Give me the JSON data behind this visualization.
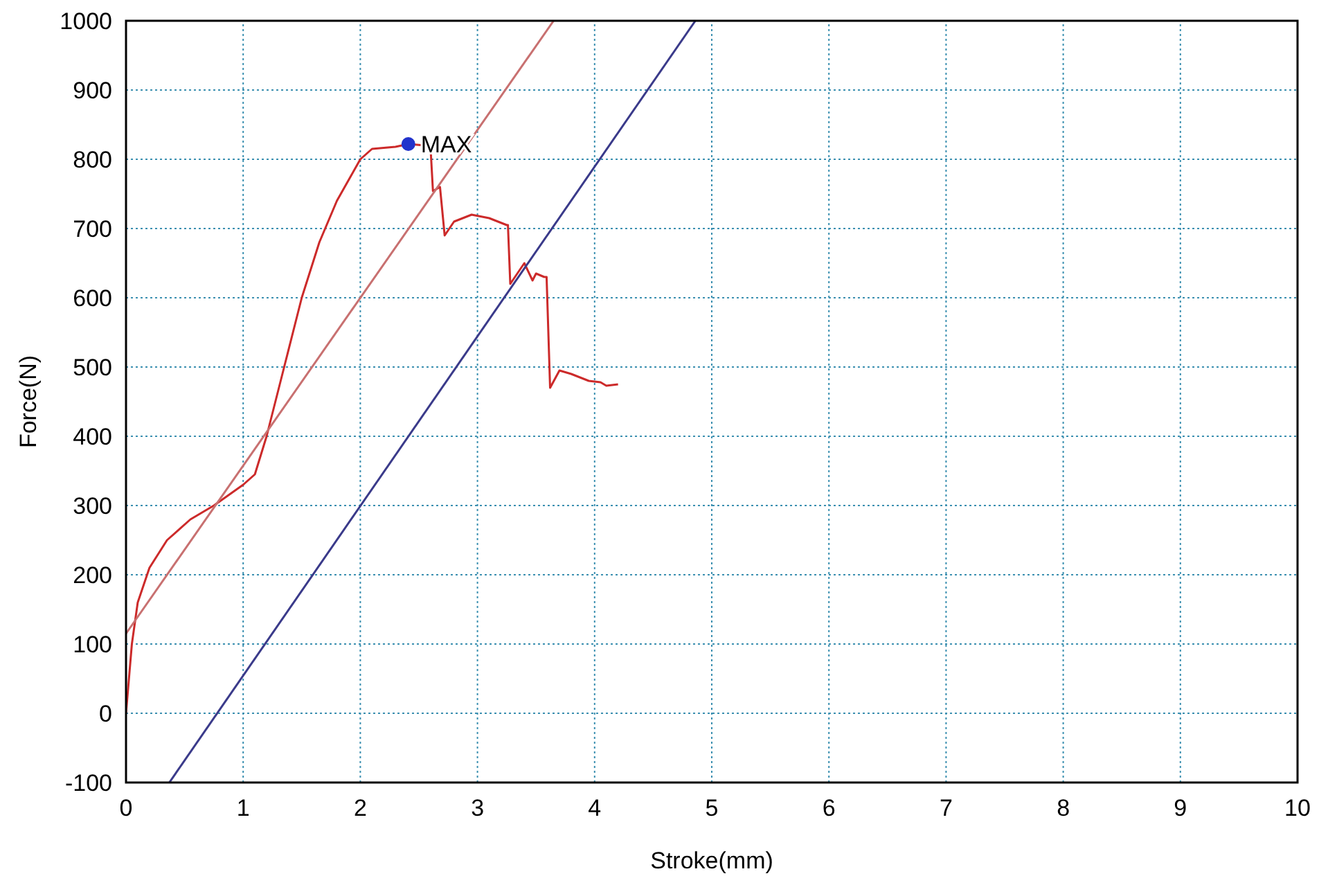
{
  "chart_data": {
    "type": "line",
    "xlabel": "Stroke(mm)",
    "ylabel": "Force(N)",
    "xlim": [
      0,
      10
    ],
    "ylim": [
      -100,
      1000
    ],
    "xticks": [
      0,
      1,
      2,
      3,
      4,
      5,
      6,
      7,
      8,
      9,
      10
    ],
    "yticks": [
      -100,
      0,
      100,
      200,
      300,
      400,
      500,
      600,
      700,
      800,
      900,
      1000
    ],
    "grid": true,
    "series": [
      {
        "color": "#cc2a2a",
        "x": [
          0,
          0.05,
          0.1,
          0.2,
          0.35,
          0.55,
          0.75,
          1.0,
          1.1,
          1.2,
          1.35,
          1.5,
          1.65,
          1.8,
          2.0,
          2.1,
          2.3,
          2.41,
          2.55,
          2.6,
          2.62,
          2.68,
          2.72,
          2.8,
          2.95,
          3.1,
          3.25,
          3.26,
          3.28,
          3.4,
          3.47,
          3.5,
          3.57,
          3.59,
          3.62,
          3.7,
          3.8,
          3.95,
          4.05,
          4.1,
          4.2
        ],
        "values": [
          0,
          100,
          160,
          210,
          250,
          280,
          300,
          330,
          345,
          400,
          500,
          600,
          680,
          740,
          800,
          815,
          818,
          822,
          820,
          815,
          754,
          760,
          690,
          710,
          720,
          715,
          705,
          705,
          620,
          650,
          625,
          635,
          630,
          630,
          470,
          495,
          490,
          480,
          478,
          473,
          475
        ]
      },
      {
        "color": "#c87070",
        "x": [
          0,
          3.65
        ],
        "values": [
          115,
          1000
        ]
      },
      {
        "color": "#3a3a8a",
        "x": [
          0.37,
          4.86
        ],
        "values": [
          -100,
          1000
        ]
      },
      {
        "type": "scatter",
        "color": "#2233cc",
        "marker": "circle",
        "x": [
          2.41
        ],
        "values": [
          822
        ]
      }
    ],
    "annotations": [
      {
        "text": "MAX",
        "x": 2.41,
        "y": 822
      }
    ]
  }
}
